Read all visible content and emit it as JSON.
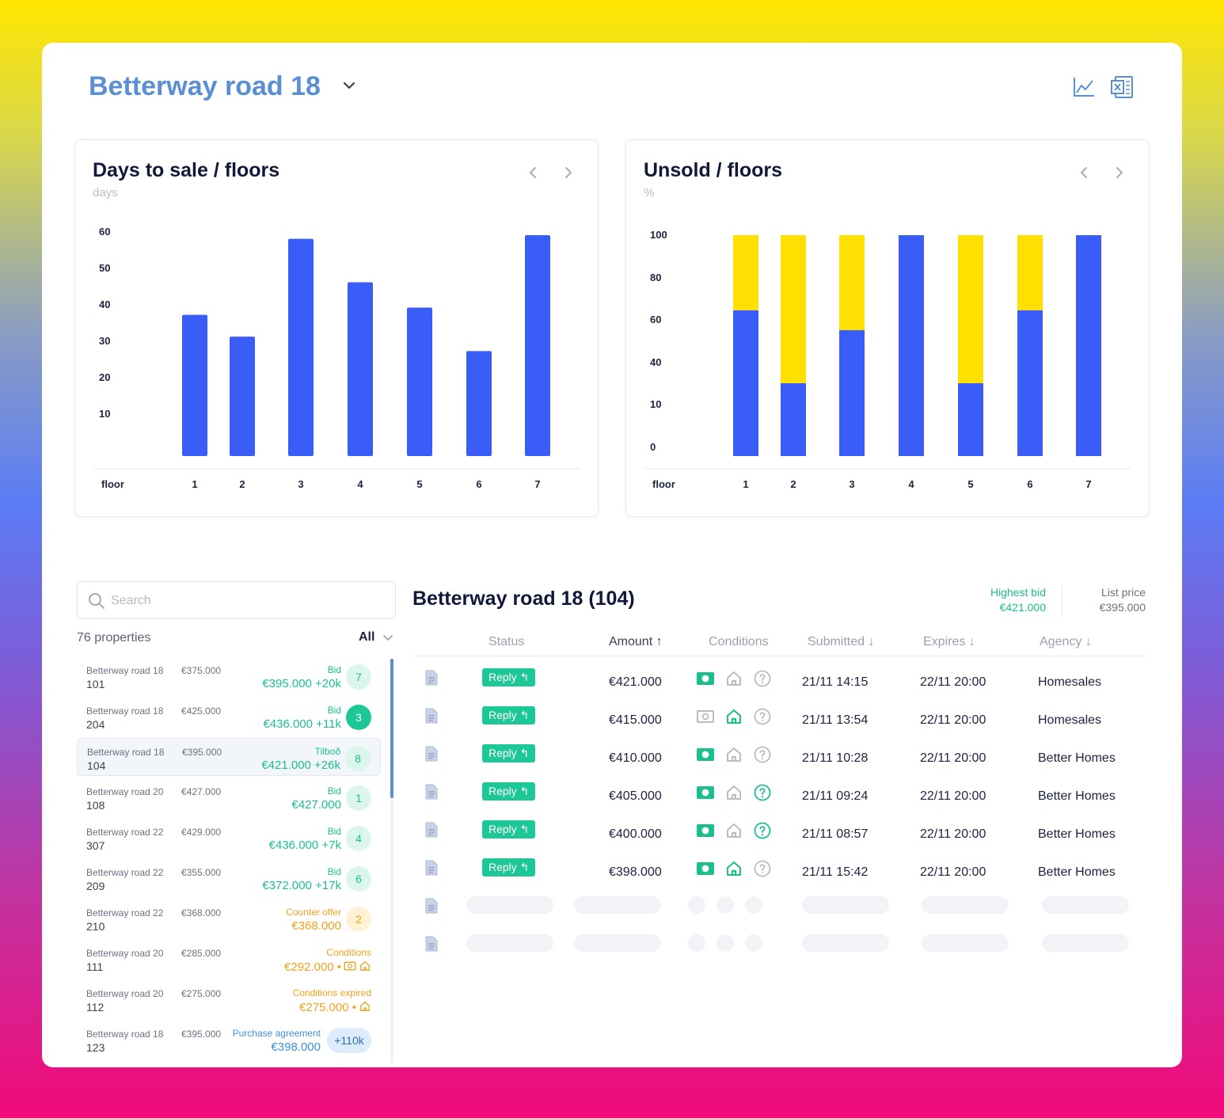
{
  "header": {
    "title": "Betterway road 18"
  },
  "charts": {
    "left": {
      "title": "Days to sale / floors",
      "unit": "days"
    },
    "right": {
      "title": "Unsold / floors",
      "unit": "%"
    }
  },
  "chart_data": [
    {
      "type": "bar",
      "title": "Days to sale / floors",
      "ylabel": "days",
      "xlabel": "floor",
      "categories": [
        "1",
        "2",
        "3",
        "4",
        "5",
        "6",
        "7"
      ],
      "values": [
        39,
        33,
        60,
        48,
        41,
        29,
        61
      ],
      "y_ticks": [
        "60",
        "50",
        "40",
        "30",
        "20",
        "10"
      ],
      "ylim": [
        0,
        61
      ],
      "color": "#3a5cf7",
      "grid": false
    },
    {
      "type": "bar",
      "stacked": true,
      "title": "Unsold / floors",
      "ylabel": "%",
      "xlabel": "floor",
      "categories": [
        "1",
        "2",
        "3",
        "4",
        "5",
        "6",
        "7"
      ],
      "series": [
        {
          "values": [
            66,
            33,
            57,
            100,
            33,
            66,
            100
          ],
          "color": "#3a5cf7"
        },
        {
          "values": [
            34,
            67,
            43,
            0,
            67,
            34,
            0
          ],
          "color": "#ffe000"
        }
      ],
      "y_ticks": [
        "100",
        "80",
        "60",
        "40",
        "10",
        "0"
      ],
      "ylim": [
        0,
        100
      ],
      "grid": false
    }
  ],
  "sidebar": {
    "search_placeholder": "Search",
    "count_label": "76 properties",
    "filter_label": "All",
    "properties": [
      {
        "street": "Betterway road 18",
        "price": "€375.000",
        "unit": "101",
        "status": "Bid",
        "amount": "€395.000 +20k",
        "badge": "7",
        "tone": "green",
        "badge_style": "light"
      },
      {
        "street": "Betterway road 18",
        "price": "€425.000",
        "unit": "204",
        "status": "Bid",
        "amount": "€436.000 +11k",
        "badge": "3",
        "tone": "green",
        "badge_style": "solid"
      },
      {
        "street": "Betterway road 18",
        "price": "€395.000",
        "unit": "104",
        "status": "Tilboð",
        "amount": "€421.000 +26k",
        "badge": "8",
        "tone": "green",
        "badge_style": "light",
        "selected": true
      },
      {
        "street": "Betterway road 20",
        "price": "€427.000",
        "unit": "108",
        "status": "Bid",
        "amount": "€427.000",
        "badge": "1",
        "tone": "green",
        "badge_style": "light"
      },
      {
        "street": "Betterway road 22",
        "price": "€429.000",
        "unit": "307",
        "status": "Bid",
        "amount": "€436.000 +7k",
        "badge": "4",
        "tone": "green",
        "badge_style": "light"
      },
      {
        "street": "Betterway road 22",
        "price": "€355.000",
        "unit": "209",
        "status": "Bid",
        "amount": "€372.000 +17k",
        "badge": "6",
        "tone": "green",
        "badge_style": "light"
      },
      {
        "street": "Betterway road 22",
        "price": "€368.000",
        "unit": "210",
        "status": "Counter offer",
        "amount": "€368.000",
        "badge": "2",
        "tone": "orange",
        "badge_style": "light"
      },
      {
        "street": "Betterway road 20",
        "price": "€285.000",
        "unit": "111",
        "status": "Conditions",
        "amount": "€292.000 •",
        "badge": "",
        "tone": "orange",
        "icons": [
          "money-icon",
          "house-icon"
        ]
      },
      {
        "street": "Betterway road 20",
        "price": "€275.000",
        "unit": "112",
        "status": "Conditions expired",
        "amount": "€275.000 •",
        "badge": "",
        "tone": "orange",
        "icons": [
          "house-icon"
        ]
      },
      {
        "street": "Betterway road 18",
        "price": "€395.000",
        "unit": "123",
        "status": "Purchase agreement",
        "amount": "€398.000",
        "badge": "+110k",
        "tone": "blue",
        "badge_style": "wide"
      }
    ]
  },
  "bids": {
    "title": "Betterway road 18 (104)",
    "highest_bid_label": "Highest bid",
    "highest_bid_value": "€421.000",
    "list_price_label": "List price",
    "list_price_value": "€395.000",
    "columns": {
      "status": "Status",
      "amount": "Amount ↑",
      "conditions": "Conditions",
      "submitted": "Submitted ↓",
      "expires": "Expires ↓",
      "agency": "Agency ↓"
    },
    "reply_label": "Reply ↰",
    "rows": [
      {
        "amount": "€421.000",
        "submitted": "21/11 14:15",
        "expires": "22/11 20:00",
        "agency": "Homesales",
        "money": true,
        "house": false,
        "question": false
      },
      {
        "amount": "€415.000",
        "submitted": "21/11 13:54",
        "expires": "22/11 20:00",
        "agency": "Homesales",
        "money": false,
        "house": true,
        "question": false
      },
      {
        "amount": "€410.000",
        "submitted": "21/11 10:28",
        "expires": "22/11 20:00",
        "agency": "Better Homes",
        "money": true,
        "house": false,
        "question": false
      },
      {
        "amount": "€405.000",
        "submitted": "21/11 09:24",
        "expires": "22/11 20:00",
        "agency": "Better Homes",
        "money": true,
        "house": false,
        "question": true
      },
      {
        "amount": "€400.000",
        "submitted": "21/11 08:57",
        "expires": "22/11 20:00",
        "agency": "Better Homes",
        "money": true,
        "house": false,
        "question": true
      },
      {
        "amount": "€398.000",
        "submitted": "21/11 15:42",
        "expires": "22/11 20:00",
        "agency": "Better Homes",
        "money": true,
        "house": true,
        "question": false
      }
    ]
  },
  "colors": {
    "accent_blue": "#3a5cf7",
    "accent_yellow": "#ffe000",
    "green": "#1ec796",
    "orange": "#f0a21c",
    "title_blue": "#5b8fd4"
  }
}
